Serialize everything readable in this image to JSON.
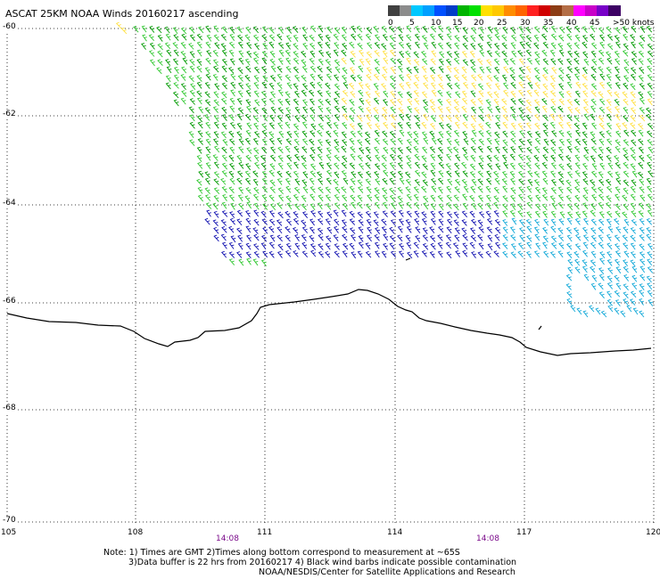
{
  "header": {
    "title": "ASCAT 25KM NOAA Winds 20160217 ascending"
  },
  "legend": {
    "colors": [
      "#404040",
      "#8c8c8c",
      "#00c8ff",
      "#00a0ff",
      "#0050ff",
      "#003cc8",
      "#00b400",
      "#00e000",
      "#ffe000",
      "#ffc800",
      "#ff8c00",
      "#ff6400",
      "#ff2020",
      "#d00000",
      "#8c3c14",
      "#b46e46",
      "#ff00ff",
      "#c800c8",
      "#7800c8",
      "#3c0064"
    ],
    "labels": [
      "0",
      "5",
      "10",
      "15",
      "20",
      "25",
      "30",
      "35",
      "40",
      "45",
      ">50 knots"
    ]
  },
  "axes": {
    "lat_labels": [
      "-60",
      "-62",
      "-64",
      "-66",
      "-68",
      "-70"
    ],
    "lon_labels": [
      "105",
      "108",
      "111",
      "114",
      "117",
      "120"
    ],
    "time_labels": [
      "14:08",
      "14:08"
    ]
  },
  "wind_colors": {
    "green": "#009a00",
    "light_green": "#30c830",
    "yellow": "#ffe040",
    "blue": "#1010b0",
    "cyan": "#10a8d8",
    "coast": "#000000"
  },
  "notes": {
    "line1": "Note: 1) Times are GMT 2)Times along bottom correspond to measurement at ~65S",
    "line2": "3)Data buffer is 22 hrs from 20160217 4) Black wind barbs indicate possible contamination",
    "line3": "NOAA/NESDIS/Center for Satellite Applications and Research"
  }
}
